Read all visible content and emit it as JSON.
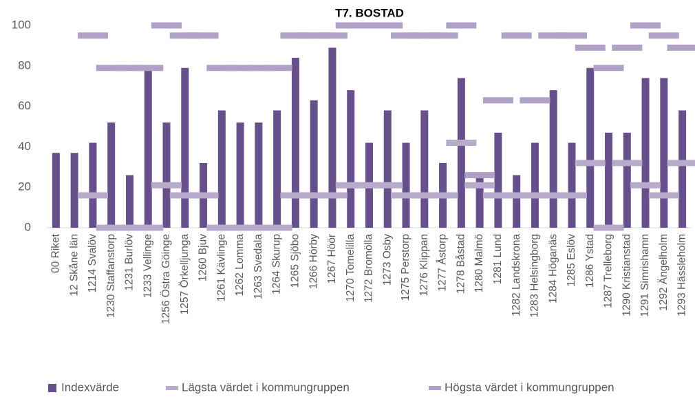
{
  "chart_data": {
    "type": "bar",
    "title": "T7. BOSTAD",
    "categories": [
      "00 Riket",
      "12 Skåne län",
      "1214 Svalöv",
      "1230 Staffanstorp",
      "1231 Burlöv",
      "1233 Vellinge",
      "1256 Östra Göinge",
      "1257 Örkelljunga",
      "1260 Bjuv",
      "1261 Kävlinge",
      "1262 Lomma",
      "1263 Svedala",
      "1264 Skurup",
      "1265 Sjöbo",
      "1266 Hörby",
      "1267 Höör",
      "1270 Tomelilla",
      "1272 Bromölla",
      "1273 Osby",
      "1275 Perstorp",
      "1276 Klippan",
      "1277 Åstorp",
      "1278 Båstad",
      "1280 Malmö",
      "1281 Lund",
      "1282 Landskrona",
      "1283 Helsingborg",
      "1284 Höganäs",
      "1285 Eslöv",
      "1286 Ystad",
      "1287 Trelleborg",
      "1290 Kristianstad",
      "1291 Simrishamn",
      "1292 Ängelholm",
      "1293 Hässleholm"
    ],
    "series": [
      {
        "name": "Indexvärde",
        "color": "#65508c",
        "mark": "bar",
        "values": [
          37,
          37,
          42,
          52,
          26,
          78,
          52,
          79,
          32,
          58,
          52,
          52,
          58,
          84,
          63,
          89,
          68,
          42,
          58,
          42,
          58,
          32,
          74,
          25,
          47,
          26,
          42,
          68,
          42,
          79,
          47,
          47,
          74,
          74,
          58
        ]
      },
      {
        "name": "Lägsta värdet i kommungruppen",
        "color": "#b8aacb",
        "mark": "dash",
        "values": [
          null,
          null,
          16,
          0,
          0,
          0,
          21,
          16,
          16,
          0,
          0,
          0,
          0,
          16,
          16,
          16,
          21,
          21,
          21,
          16,
          16,
          16,
          42,
          21,
          16,
          16,
          16,
          16,
          16,
          32,
          0,
          32,
          21,
          16,
          32
        ]
      },
      {
        "name": "Högsta värdet i kommungruppen",
        "color": "#b0a1c7",
        "mark": "dash",
        "values": [
          null,
          null,
          95,
          79,
          79,
          79,
          100,
          95,
          95,
          79,
          79,
          79,
          79,
          95,
          95,
          95,
          100,
          100,
          100,
          95,
          95,
          95,
          100,
          26,
          63,
          95,
          63,
          95,
          95,
          89,
          79,
          89,
          100,
          95,
          89
        ]
      }
    ],
    "ylim": [
      0,
      100
    ],
    "yticks": [
      0,
      20,
      40,
      60,
      80,
      100
    ],
    "grid": false,
    "legend": "bottom"
  }
}
